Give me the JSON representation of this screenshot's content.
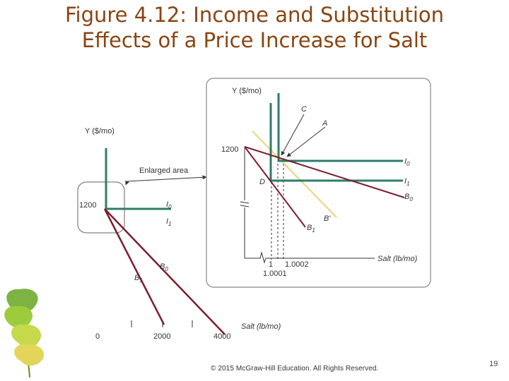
{
  "slide": {
    "title_line1": "Figure 4.12: Income and Substitution",
    "title_line2": "Effects of a Price Increase for Salt",
    "copyright": "© 2015 McGraw-Hill Education. All Rights Reserved.",
    "page_number": "19"
  },
  "left_graph": {
    "y_axis_label": "Y ($/mo)",
    "x_axis_label": "Salt (lb/mo)",
    "y_tick": "1200",
    "x_ticks": [
      "0",
      "2000",
      "4000"
    ],
    "curve_labels": {
      "I0": {
        "base": "I",
        "sub": "0"
      },
      "I1": {
        "base": "I",
        "sub": "1"
      },
      "B0": {
        "base": "B",
        "sub": "0"
      },
      "B1": {
        "base": "B",
        "sub": "1"
      }
    },
    "callout": "Enlarged area"
  },
  "enlarged_graph": {
    "y_axis_label": "Y ($/mo)",
    "x_axis_label": "Salt (lb/mo)",
    "y_tick": "1200",
    "x_ticks": [
      "1",
      "1.0002",
      "1.0001"
    ],
    "points": [
      "C",
      "A",
      "D"
    ],
    "curve_labels": {
      "I0": {
        "base": "I",
        "sub": "0"
      },
      "I1": {
        "base": "I",
        "sub": "1"
      },
      "B0": {
        "base": "B",
        "sub": "0"
      },
      "B1": {
        "base": "B",
        "sub": "1"
      },
      "Bprime": "B′"
    }
  },
  "colors": {
    "title": "#8a4513",
    "indifference_curves": "#2e7d6b",
    "budget_lines": "#7a1f2e",
    "compensated_budget": "#f2d98c",
    "axes": "#333333"
  }
}
